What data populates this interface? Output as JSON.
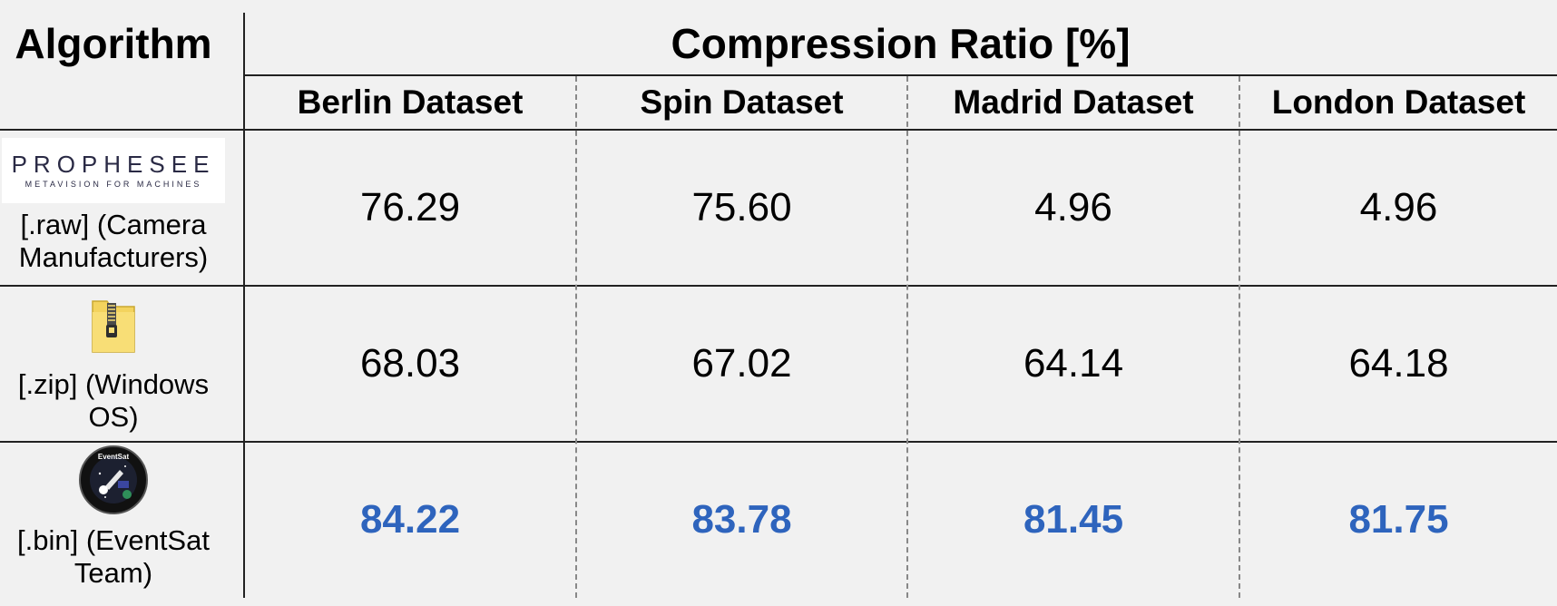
{
  "table": {
    "algorithm_header": "Algorithm",
    "main_header": "Compression Ratio [%]",
    "dataset_headers": [
      "Berlin Dataset",
      "Spin Dataset",
      "Madrid Dataset",
      "London Dataset"
    ],
    "rows": [
      {
        "icon": "prophesee-logo",
        "logo_text": "PROPHESEE",
        "logo_subtext": "METAVISION FOR MACHINES",
        "label_line1": "[.raw] (Camera",
        "label_line2": "Manufacturers)",
        "values": [
          "76.29",
          "75.60",
          "4.96",
          "4.96"
        ],
        "highlight": false
      },
      {
        "icon": "zip-folder-icon",
        "label_line1": "[.zip] (Windows",
        "label_line2": "OS)",
        "values": [
          "68.03",
          "67.02",
          "64.14",
          "64.18"
        ],
        "highlight": false
      },
      {
        "icon": "eventsat-mission-patch",
        "logo_text": "EventSat",
        "label_line1": "[.bin] (EventSat",
        "label_line2": "Team)",
        "values": [
          "84.22",
          "83.78",
          "81.45",
          "81.75"
        ],
        "highlight": true
      }
    ],
    "highlight_color": "#2e64bd"
  }
}
